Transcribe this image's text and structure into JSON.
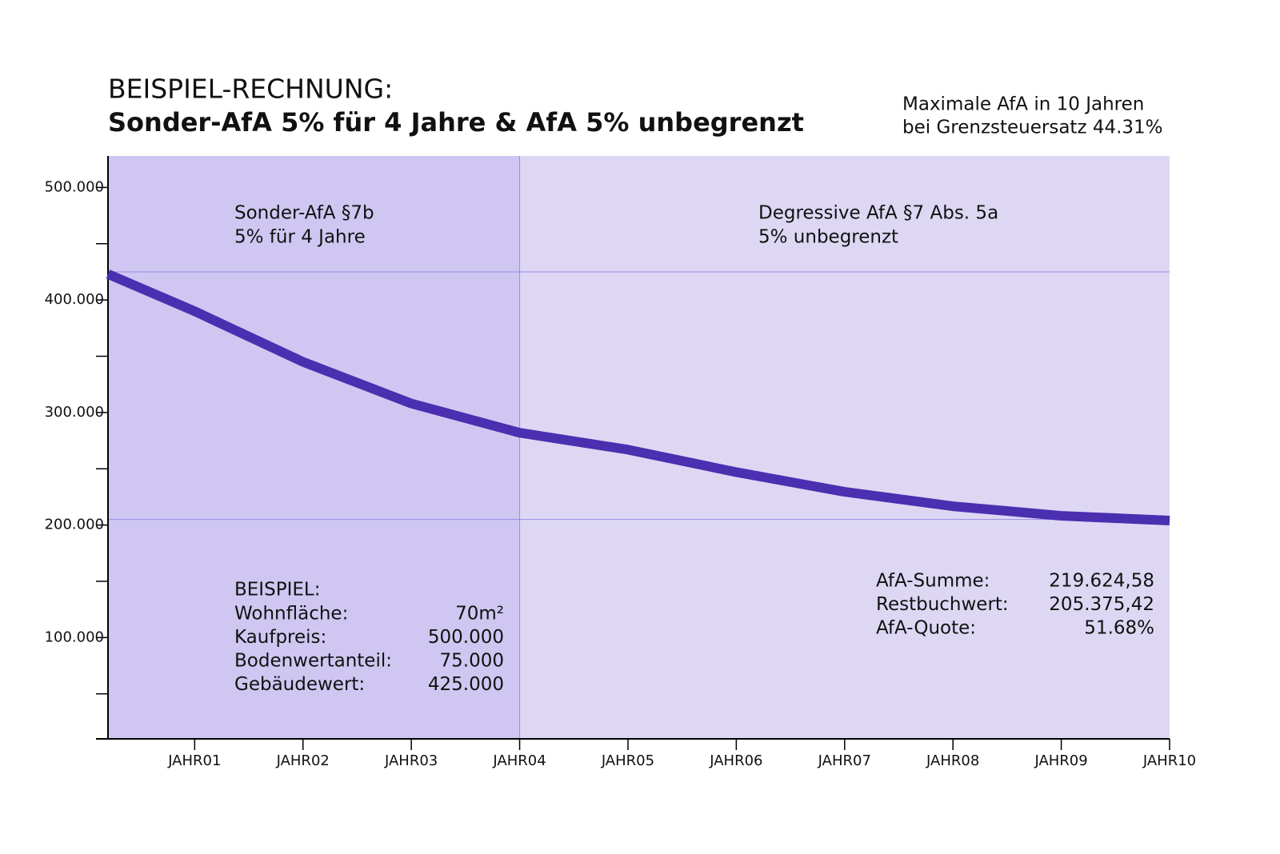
{
  "chart_data": {
    "type": "line",
    "title": "BEISPIEL-RECHNUNG:",
    "subtitle": "Sonder-AfA 5% für 4 Jahre  &  AfA 5% unbegrenzt",
    "note_lines": [
      "Maximale AfA in 10 Jahren",
      "bei Grenzsteuersatz 44.31%"
    ],
    "x": [
      0.2,
      1,
      2,
      3,
      4,
      5,
      6,
      7,
      8,
      9,
      10
    ],
    "series": [
      {
        "color": "#4a2fb0",
        "values": [
          423000,
          390000,
          345000,
          308000,
          282000,
          267000,
          247000,
          229500,
          216700,
          208200,
          204000
        ]
      }
    ],
    "xlim": [
      0.2,
      10
    ],
    "xticks": [
      {
        "value": 1,
        "label": "JAHR01"
      },
      {
        "value": 2,
        "label": "JAHR02"
      },
      {
        "value": 3,
        "label": "JAHR03"
      },
      {
        "value": 4,
        "label": "JAHR04"
      },
      {
        "value": 5,
        "label": "JAHR05"
      },
      {
        "value": 6,
        "label": "JAHR06"
      },
      {
        "value": 7,
        "label": "JAHR07"
      },
      {
        "value": 8,
        "label": "JAHR08"
      },
      {
        "value": 9,
        "label": "JAHR09"
      },
      {
        "value": 10,
        "label": "JAHR10"
      }
    ],
    "ylim": [
      10000,
      528000
    ],
    "yticks": [
      {
        "value": 100000,
        "label": "100.000"
      },
      {
        "value": 200000,
        "label": "200.000"
      },
      {
        "value": 300000,
        "label": "300.000"
      },
      {
        "value": 400000,
        "label": "400.000"
      },
      {
        "value": 500000,
        "label": "500.000"
      }
    ],
    "yminorticks": [
      50000,
      150000,
      250000,
      350000,
      450000
    ],
    "hlines": [
      425000,
      205000
    ],
    "vlines": [
      4
    ],
    "regions": [
      {
        "x0": 0.2,
        "x1": 4,
        "color": "#cfc7f1",
        "label_lines": [
          "Sonder-AfA §7b",
          "5% für 4 Jahre"
        ]
      },
      {
        "x0": 4,
        "x1": 10,
        "color": "#ddd7f4",
        "label_lines": [
          "Degressive AfA §7 Abs. 5a",
          "5% unbegrenzt"
        ]
      }
    ],
    "example": {
      "title": "BEISPIEL:",
      "rows": [
        [
          "Wohnfläche:",
          "70m²"
        ],
        [
          "Kaufpreis:",
          "500.000"
        ],
        [
          "Bodenwertanteil:",
          "75.000"
        ],
        [
          "Gebäudewert:",
          "425.000"
        ]
      ]
    },
    "summary": {
      "rows": [
        [
          "AfA-Summe:",
          "219.624,58"
        ],
        [
          "Restbuchwert:",
          "205.375,42"
        ],
        [
          "AfA-Quote:",
          "51.68%"
        ]
      ]
    }
  }
}
